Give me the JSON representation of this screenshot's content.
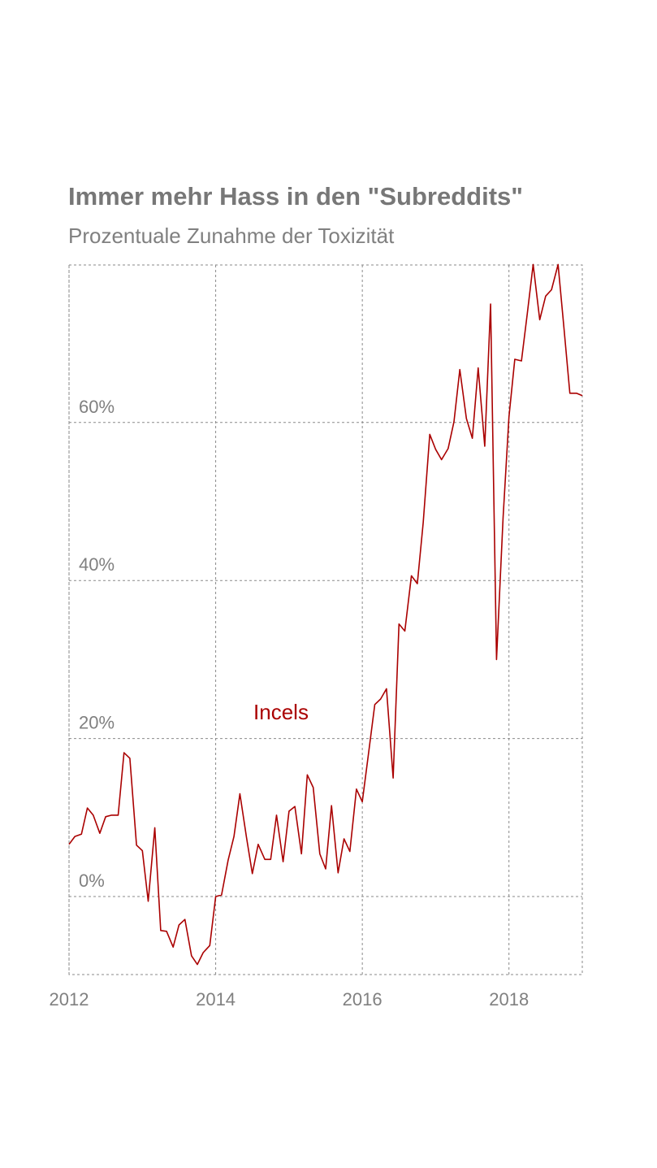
{
  "chart_data": {
    "type": "line",
    "title": "Immer mehr Hass in den \"Subreddits\"",
    "subtitle": "Prozentuale Zunahme der Toxizität",
    "xlabel": "",
    "ylabel": "",
    "xlim": [
      2012,
      2019
    ],
    "ylim": [
      -10,
      80
    ],
    "x_ticks": [
      2012,
      2014,
      2016,
      2018
    ],
    "x_tick_labels": [
      "2012",
      "2014",
      "2016",
      "2018"
    ],
    "y_ticks": [
      0,
      20,
      40,
      60
    ],
    "y_tick_labels": [
      "0%",
      "20%",
      "40%",
      "60%"
    ],
    "grid": true,
    "line_color": "#aa0000",
    "series": [
      {
        "name": "Incels",
        "x": [
          2012.0,
          2012.08,
          2012.17,
          2012.25,
          2012.33,
          2012.42,
          2012.5,
          2012.58,
          2012.67,
          2012.75,
          2012.83,
          2012.92,
          2013.0,
          2013.08,
          2013.17,
          2013.25,
          2013.33,
          2013.42,
          2013.5,
          2013.58,
          2013.67,
          2013.75,
          2013.83,
          2013.92,
          2014.0,
          2014.08,
          2014.17,
          2014.25,
          2014.33,
          2014.42,
          2014.5,
          2014.58,
          2014.67,
          2014.75,
          2014.83,
          2014.92,
          2015.0,
          2015.08,
          2015.17,
          2015.25,
          2015.33,
          2015.42,
          2015.5,
          2015.58,
          2015.67,
          2015.75,
          2015.83,
          2015.92,
          2016.0,
          2016.08,
          2016.17,
          2016.25,
          2016.33,
          2016.42,
          2016.5,
          2016.58,
          2016.67,
          2016.75,
          2016.83,
          2016.92,
          2017.0,
          2017.08,
          2017.17,
          2017.25,
          2017.33,
          2017.42,
          2017.5,
          2017.58,
          2017.67,
          2017.75,
          2017.83,
          2017.92,
          2018.0,
          2018.08,
          2018.17,
          2018.25,
          2018.33,
          2018.42,
          2018.5,
          2018.58,
          2018.67,
          2018.75,
          2018.83,
          2018.92,
          2019.0
        ],
        "values": [
          6.6,
          7.6,
          7.9,
          11.2,
          10.3,
          8.0,
          10.1,
          10.3,
          10.3,
          18.2,
          17.5,
          6.5,
          5.8,
          -0.6,
          8.7,
          -4.3,
          -4.4,
          -6.4,
          -3.6,
          -2.9,
          -7.5,
          -8.6,
          -7.1,
          -6.2,
          0.0,
          0.2,
          4.6,
          7.6,
          13.0,
          7.5,
          2.9,
          6.6,
          4.7,
          4.7,
          10.3,
          4.4,
          10.8,
          11.4,
          5.4,
          15.4,
          13.8,
          5.4,
          3.5,
          11.5,
          3.0,
          7.3,
          5.7,
          13.6,
          12.0,
          17.8,
          24.3,
          25.0,
          26.3,
          15.0,
          34.5,
          33.6,
          40.6,
          39.6,
          47.3,
          58.5,
          56.6,
          55.3,
          56.7,
          60.1,
          66.7,
          60.5,
          58.0,
          66.9,
          57.0,
          75.0,
          30.0,
          48.0,
          60.7,
          68.0,
          67.8,
          73.8,
          80.0,
          73.0,
          76.0,
          76.8,
          80.0,
          72.0,
          63.7,
          63.7,
          63.4
        ]
      }
    ]
  }
}
